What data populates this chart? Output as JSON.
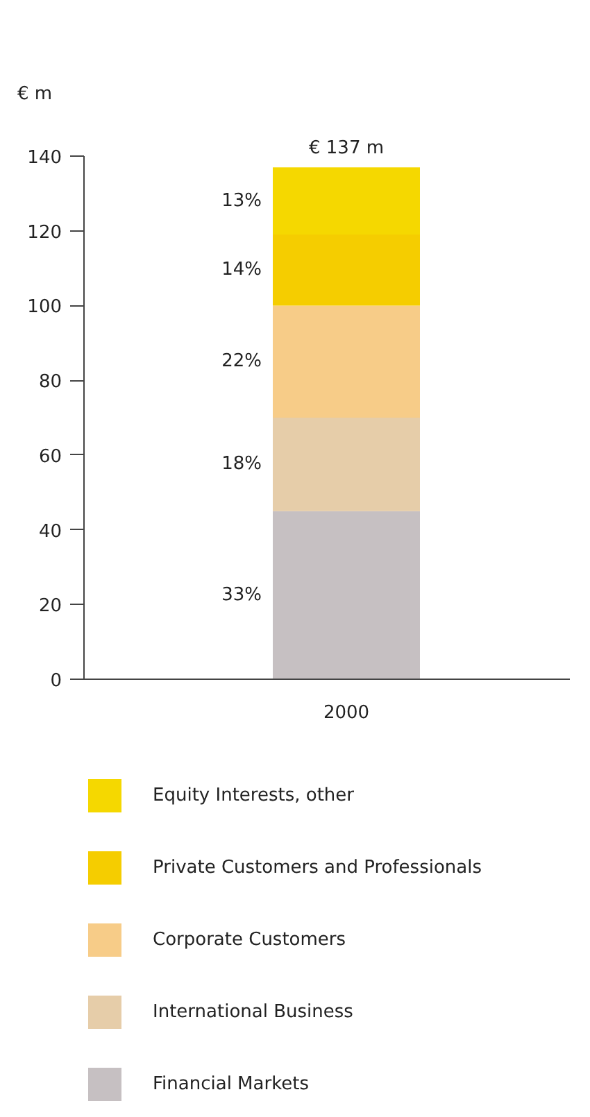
{
  "chart_data": {
    "type": "bar",
    "stacked": true,
    "ylabel": "€ m",
    "categories": [
      "2000"
    ],
    "ylim": [
      0,
      140
    ],
    "yticks": [
      0,
      20,
      40,
      60,
      80,
      100,
      120,
      140
    ],
    "grid": false,
    "legend": "bottom",
    "totals": [
      "€ 137 m"
    ],
    "annotations": [
      "33%",
      "18%",
      "22%",
      "14%",
      "13%"
    ],
    "series": [
      {
        "name": "Financial Markets",
        "color": "#c6c0c2",
        "values": [
          45
        ]
      },
      {
        "name": "International Business",
        "color": "#e6cda9",
        "values": [
          25
        ]
      },
      {
        "name": "Corporate Customers",
        "color": "#f7cc88",
        "values": [
          30
        ]
      },
      {
        "name": "Private Customers and Professionals",
        "color": "#f5cd00",
        "values": [
          19
        ]
      },
      {
        "name": "Equity Interests, other",
        "color": "#f5d800",
        "values": [
          18
        ]
      }
    ]
  }
}
